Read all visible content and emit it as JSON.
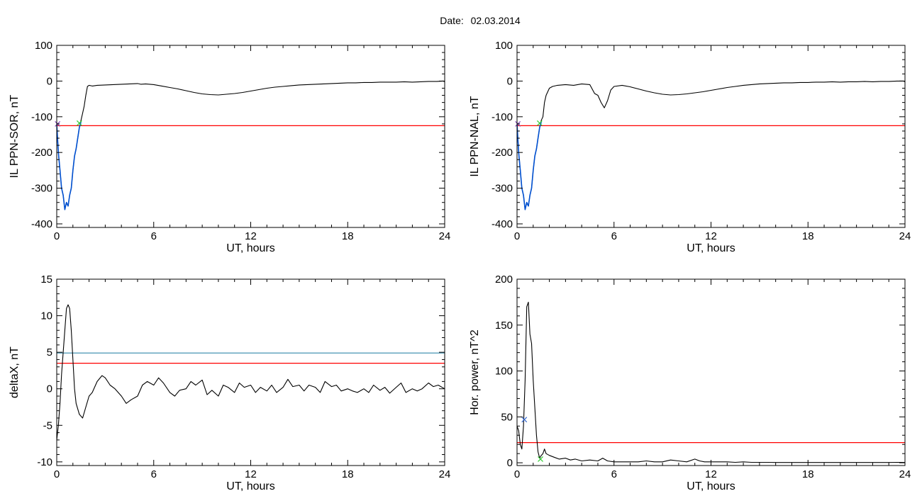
{
  "page": {
    "date_label": "Date:",
    "date_value": "02.03.2014"
  },
  "chart_data": [
    {
      "type": "line",
      "id": "il-sor",
      "xlabel": "UT, hours",
      "ylabel": "IL PPN-SOR, nT",
      "xlim": [
        0,
        24
      ],
      "ylim": [
        -410,
        100
      ],
      "xticks": [
        0,
        6,
        12,
        18,
        24
      ],
      "yticks": [
        100,
        0,
        -100,
        -200,
        -300,
        -400
      ],
      "grid": false,
      "series": [
        {
          "color": "#000000",
          "x": [
            0.0,
            0.1,
            0.2,
            0.3,
            0.4,
            0.5,
            0.6,
            0.7,
            0.8,
            0.9,
            1.0,
            1.1,
            1.2,
            1.3,
            1.4,
            1.5,
            1.6,
            1.7,
            1.8,
            1.9,
            2.0,
            2.2,
            2.5,
            3.0,
            3.5,
            4.0,
            4.5,
            5.0,
            5.2,
            5.5,
            6.0,
            6.5,
            7.0,
            7.5,
            8.0,
            8.5,
            9.0,
            9.5,
            10.0,
            10.5,
            11.0,
            11.5,
            12.0,
            12.5,
            13.0,
            13.5,
            14.0,
            14.5,
            15.0,
            15.5,
            16.0,
            16.5,
            17.0,
            17.5,
            18.0,
            18.5,
            19.0,
            19.5,
            20.0,
            20.5,
            21.0,
            21.5,
            22.0,
            22.5,
            23.0,
            23.5,
            23.9,
            24.0
          ],
          "y": [
            -120,
            -200,
            -250,
            -300,
            -320,
            -360,
            -340,
            -350,
            -320,
            -300,
            -250,
            -210,
            -190,
            -160,
            -130,
            -110,
            -90,
            -70,
            -40,
            -15,
            -12,
            -14,
            -12,
            -11,
            -10,
            -9,
            -8,
            -7,
            -9,
            -8,
            -10,
            -14,
            -18,
            -22,
            -27,
            -32,
            -36,
            -38,
            -39,
            -37,
            -35,
            -32,
            -28,
            -24,
            -20,
            -17,
            -15,
            -13,
            -11,
            -10,
            -9,
            -8,
            -7,
            -6,
            -5,
            -5,
            -4,
            -4,
            -3,
            -3,
            -3,
            -2,
            -3,
            -2,
            -1,
            -1,
            0,
            -2
          ]
        },
        {
          "color": "#0050d0",
          "x": [
            0.0,
            0.1,
            0.2,
            0.3,
            0.4,
            0.5,
            0.6,
            0.7,
            0.8,
            0.9,
            1.0,
            1.1,
            1.2,
            1.3,
            1.4,
            1.5
          ],
          "y": [
            -120,
            -200,
            -250,
            -300,
            -320,
            -360,
            -340,
            -350,
            -320,
            -300,
            -250,
            -210,
            -190,
            -160,
            -130,
            -115
          ]
        }
      ],
      "hlines": [
        {
          "y": -125,
          "color": "#ff0000"
        }
      ],
      "markers": [
        {
          "x": 0.05,
          "y": -120,
          "color": "#7a3db8",
          "symbol": "x"
        },
        {
          "x": 1.4,
          "y": -118,
          "color": "#33cc33",
          "symbol": "x"
        }
      ]
    },
    {
      "type": "line",
      "id": "il-nal",
      "xlabel": "UT, hours",
      "ylabel": "IL PPN-NAL, nT",
      "xlim": [
        0,
        24
      ],
      "ylim": [
        -410,
        100
      ],
      "xticks": [
        0,
        6,
        12,
        18,
        24
      ],
      "yticks": [
        100,
        0,
        -100,
        -200,
        -300,
        -400
      ],
      "grid": false,
      "series": [
        {
          "color": "#000000",
          "x": [
            0.0,
            0.1,
            0.2,
            0.3,
            0.4,
            0.5,
            0.6,
            0.7,
            0.8,
            0.9,
            1.0,
            1.1,
            1.2,
            1.3,
            1.4,
            1.5,
            1.6,
            1.7,
            1.8,
            1.9,
            2.0,
            2.2,
            2.5,
            3.0,
            3.5,
            4.0,
            4.5,
            4.8,
            5.0,
            5.2,
            5.4,
            5.6,
            5.8,
            6.0,
            6.5,
            7.0,
            7.5,
            8.0,
            8.5,
            9.0,
            9.5,
            10.0,
            10.5,
            11.0,
            11.5,
            12.0,
            12.5,
            13.0,
            13.5,
            14.0,
            14.5,
            15.0,
            15.5,
            16.0,
            16.5,
            17.0,
            17.5,
            18.0,
            18.5,
            19.0,
            19.5,
            20.0,
            20.5,
            21.0,
            21.5,
            22.0,
            22.5,
            23.0,
            23.5,
            23.9,
            24.0
          ],
          "y": [
            -120,
            -200,
            -250,
            -300,
            -320,
            -360,
            -340,
            -350,
            -320,
            -300,
            -250,
            -210,
            -190,
            -160,
            -130,
            -110,
            -100,
            -60,
            -40,
            -30,
            -20,
            -15,
            -12,
            -10,
            -12,
            -8,
            -10,
            -35,
            -40,
            -60,
            -75,
            -55,
            -25,
            -15,
            -12,
            -16,
            -22,
            -28,
            -33,
            -37,
            -39,
            -38,
            -36,
            -33,
            -30,
            -26,
            -22,
            -18,
            -15,
            -12,
            -10,
            -8,
            -7,
            -6,
            -5,
            -5,
            -4,
            -4,
            -3,
            -3,
            -2,
            -3,
            -2,
            -2,
            -1,
            -2,
            -1,
            -1,
            0,
            0,
            -2
          ]
        },
        {
          "color": "#0050d0",
          "x": [
            0.0,
            0.1,
            0.2,
            0.3,
            0.4,
            0.5,
            0.6,
            0.7,
            0.8,
            0.9,
            1.0,
            1.1,
            1.2,
            1.3,
            1.4,
            1.5
          ],
          "y": [
            -120,
            -200,
            -250,
            -300,
            -320,
            -360,
            -340,
            -350,
            -320,
            -300,
            -250,
            -210,
            -190,
            -160,
            -130,
            -115
          ]
        }
      ],
      "hlines": [
        {
          "y": -125,
          "color": "#ff0000"
        }
      ],
      "markers": [
        {
          "x": 0.05,
          "y": -120,
          "color": "#7a3db8",
          "symbol": "x"
        },
        {
          "x": 1.4,
          "y": -118,
          "color": "#33cc33",
          "symbol": "x"
        }
      ]
    },
    {
      "type": "line",
      "id": "deltax",
      "xlabel": "UT, hours",
      "ylabel": "deltaX, nT",
      "xlim": [
        0,
        24
      ],
      "ylim": [
        -10.5,
        15
      ],
      "xticks": [
        0,
        6,
        12,
        18,
        24
      ],
      "yticks": [
        15,
        10,
        5,
        0,
        -5,
        -10
      ],
      "ytick_labels": [
        "15",
        "10",
        "5",
        "0",
        "-5",
        "-10"
      ],
      "grid": false,
      "series": [
        {
          "color": "#000000",
          "x": [
            0.0,
            0.1,
            0.2,
            0.3,
            0.4,
            0.5,
            0.6,
            0.7,
            0.8,
            0.9,
            1.0,
            1.1,
            1.2,
            1.4,
            1.6,
            1.8,
            2.0,
            2.2,
            2.5,
            2.8,
            3.0,
            3.3,
            3.6,
            4.0,
            4.3,
            4.6,
            5.0,
            5.3,
            5.6,
            6.0,
            6.3,
            6.6,
            7.0,
            7.3,
            7.6,
            8.0,
            8.3,
            8.6,
            9.0,
            9.3,
            9.6,
            10.0,
            10.3,
            10.6,
            11.0,
            11.3,
            11.6,
            12.0,
            12.3,
            12.6,
            13.0,
            13.3,
            13.6,
            14.0,
            14.3,
            14.6,
            15.0,
            15.3,
            15.6,
            16.0,
            16.3,
            16.6,
            17.0,
            17.3,
            17.6,
            18.0,
            18.3,
            18.6,
            19.0,
            19.3,
            19.6,
            20.0,
            20.3,
            20.6,
            21.0,
            21.3,
            21.6,
            22.0,
            22.3,
            22.6,
            23.0,
            23.3,
            23.6,
            24.0
          ],
          "y": [
            -7,
            -5,
            -2,
            2,
            5,
            8,
            11,
            11.5,
            11,
            8,
            4,
            0,
            -2,
            -3.5,
            -4,
            -2.5,
            -1,
            -0.5,
            1,
            1.8,
            1.5,
            0.5,
            0,
            -1,
            -2,
            -1.5,
            -1,
            0.5,
            1,
            0.5,
            1.5,
            0.8,
            -0.5,
            -1,
            -0.2,
            0,
            1,
            0.5,
            1.2,
            -0.8,
            -0.2,
            -1,
            0.5,
            0.2,
            -0.5,
            0.8,
            0.2,
            0.5,
            -0.5,
            0.2,
            -0.3,
            0.5,
            -0.5,
            0.2,
            1.3,
            0.3,
            0.5,
            -0.3,
            0.5,
            0.2,
            -0.5,
            1,
            0.3,
            0.5,
            -0.3,
            0,
            -0.3,
            -0.5,
            0,
            -0.5,
            0.5,
            -0.2,
            0.2,
            -0.6,
            0.2,
            0.8,
            -0.5,
            0,
            -0.3,
            0,
            0.8,
            0.3,
            0.5,
            0
          ]
        }
      ],
      "hlines": [
        {
          "y": 4.9,
          "color": "#3388aa"
        },
        {
          "y": 3.5,
          "color": "#ff0000"
        }
      ],
      "markers": []
    },
    {
      "type": "line",
      "id": "hor-power",
      "xlabel": "UT, hours",
      "ylabel": "Hor. power, nT^2",
      "xlim": [
        0,
        24
      ],
      "ylim": [
        -3,
        200
      ],
      "xticks": [
        0,
        6,
        12,
        18,
        24
      ],
      "yticks": [
        200,
        150,
        100,
        50,
        0
      ],
      "grid": false,
      "series": [
        {
          "color": "#000000",
          "x": [
            0.0,
            0.1,
            0.2,
            0.3,
            0.4,
            0.5,
            0.6,
            0.7,
            0.8,
            0.9,
            1.0,
            1.1,
            1.2,
            1.3,
            1.4,
            1.5,
            1.6,
            1.7,
            1.8,
            2.0,
            2.3,
            2.6,
            3.0,
            3.3,
            3.6,
            4.0,
            4.5,
            5.0,
            5.3,
            5.6,
            6.0,
            6.5,
            7.0,
            7.5,
            8.0,
            8.5,
            9.0,
            9.5,
            10.0,
            10.5,
            11.0,
            11.3,
            11.6,
            12.0,
            12.5,
            13.0,
            13.5,
            14.0,
            14.5,
            15.0,
            15.5,
            16.0,
            17.0,
            18.0,
            19.0,
            20.0,
            21.0,
            22.0,
            23.0,
            23.5,
            24.0
          ],
          "y": [
            40,
            35,
            20,
            15,
            40,
            90,
            170,
            175,
            140,
            130,
            90,
            60,
            30,
            12,
            5,
            8,
            10,
            15,
            10,
            8,
            6,
            4,
            5,
            3,
            4,
            2,
            3,
            2,
            5,
            2,
            1,
            1,
            1,
            1,
            2,
            1,
            1,
            3,
            2,
            1,
            4,
            2,
            1,
            1,
            1,
            1,
            0.5,
            1,
            0.5,
            0.5,
            0.5,
            0.3,
            0.3,
            0.3,
            0.3,
            0.3,
            0.3,
            0.3,
            0.3,
            0.5,
            0.3
          ]
        }
      ],
      "hlines": [
        {
          "y": 22,
          "color": "#ff0000"
        }
      ],
      "markers": [
        {
          "x": 0.45,
          "y": 47,
          "color": "#3366cc",
          "symbol": "x"
        },
        {
          "x": 1.45,
          "y": 4,
          "color": "#33cc33",
          "symbol": "x"
        }
      ]
    }
  ]
}
